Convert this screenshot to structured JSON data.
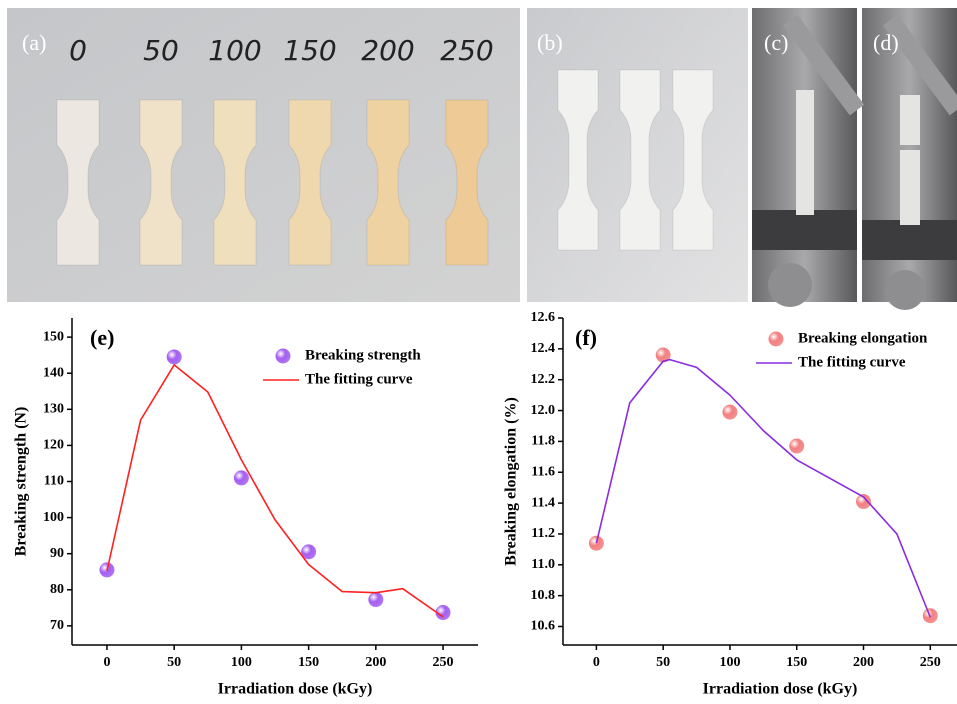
{
  "photos": {
    "a": {
      "label": "(a)",
      "doses": [
        "0",
        "50",
        "100",
        "150",
        "200",
        "250"
      ]
    },
    "b": {
      "label": "(b)"
    },
    "c": {
      "label": "(c)"
    },
    "d": {
      "label": "(d)"
    }
  },
  "chart_data": [
    {
      "type": "scatter",
      "panel_label": "(e)",
      "xlabel": "Irradiation dose (kGy)",
      "ylabel": "Breaking strength (N)",
      "xlim": [
        -26,
        276
      ],
      "ylim": [
        64.7,
        155.3
      ],
      "xticks": [
        0,
        50,
        100,
        150,
        200,
        250
      ],
      "yticks": [
        70,
        80,
        90,
        100,
        110,
        120,
        130,
        140,
        150
      ],
      "series": [
        {
          "name": "Breaking strength",
          "type": "scatter",
          "color": "#a45ef0",
          "x": [
            0,
            50,
            100,
            150,
            200,
            250
          ],
          "values": [
            85.5,
            144.5,
            111,
            90.5,
            77.3,
            73.7
          ]
        },
        {
          "name": "The fitting curve",
          "type": "line",
          "color": "#ff2020",
          "x": [
            0,
            25,
            50,
            75,
            100,
            125,
            150,
            175,
            200,
            220,
            250
          ],
          "values": [
            85.2,
            127,
            142.3,
            134.8,
            116,
            99.4,
            87,
            79.5,
            79.2,
            80.3,
            72.5
          ]
        }
      ]
    },
    {
      "type": "scatter",
      "panel_label": "(f)",
      "xlabel": "Irradiation dose (kGy)",
      "ylabel": "Breaking elongation (%)",
      "xlim": [
        -25,
        270
      ],
      "ylim": [
        10.48,
        12.6
      ],
      "xticks": [
        0,
        50,
        100,
        150,
        200,
        250
      ],
      "yticks": [
        10.6,
        10.8,
        {
          "value": 11,
          "label": "11.0"
        },
        11.2,
        11.4,
        11.6,
        11.8,
        {
          "value": 12,
          "label": "12.0"
        },
        12.2,
        12.4,
        12.6
      ],
      "series": [
        {
          "name": "Breaking elongation",
          "type": "scatter",
          "color": "#f28080",
          "x": [
            0,
            50,
            100,
            150,
            200,
            250
          ],
          "values": [
            11.14,
            12.36,
            11.99,
            11.77,
            11.41,
            10.67
          ]
        },
        {
          "name": "The fitting curve",
          "type": "line",
          "color": "#8a2be2",
          "x": [
            0,
            25,
            50,
            55,
            75,
            100,
            125,
            150,
            175,
            200,
            225,
            250
          ],
          "values": [
            11.14,
            12.05,
            12.32,
            12.33,
            12.28,
            12.1,
            11.87,
            11.68,
            11.56,
            11.44,
            11.2,
            10.66
          ]
        }
      ]
    }
  ]
}
